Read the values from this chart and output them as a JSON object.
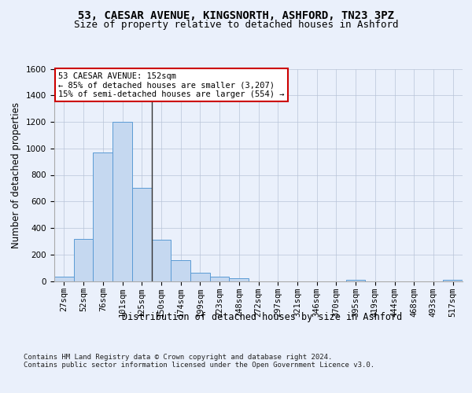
{
  "title": "53, CAESAR AVENUE, KINGSNORTH, ASHFORD, TN23 3PZ",
  "subtitle": "Size of property relative to detached houses in Ashford",
  "xlabel": "Distribution of detached houses by size in Ashford",
  "ylabel": "Number of detached properties",
  "categories": [
    "27sqm",
    "52sqm",
    "76sqm",
    "101sqm",
    "125sqm",
    "150sqm",
    "174sqm",
    "199sqm",
    "223sqm",
    "248sqm",
    "272sqm",
    "297sqm",
    "321sqm",
    "346sqm",
    "370sqm",
    "395sqm",
    "419sqm",
    "444sqm",
    "468sqm",
    "493sqm",
    "517sqm"
  ],
  "values": [
    30,
    320,
    970,
    1200,
    700,
    310,
    155,
    65,
    30,
    18,
    0,
    0,
    0,
    0,
    0,
    10,
    0,
    0,
    0,
    0,
    10
  ],
  "bar_color": "#c5d8f0",
  "bar_edge_color": "#5b9bd5",
  "vline_color": "#333333",
  "annotation_text": "53 CAESAR AVENUE: 152sqm\n← 85% of detached houses are smaller (3,207)\n15% of semi-detached houses are larger (554) →",
  "annotation_box_color": "#ffffff",
  "annotation_box_edge": "#cc0000",
  "ylim": [
    0,
    1600
  ],
  "yticks": [
    0,
    200,
    400,
    600,
    800,
    1000,
    1200,
    1400,
    1600
  ],
  "background_color": "#eaf0fb",
  "plot_bg_color": "#eaf0fb",
  "footer": "Contains HM Land Registry data © Crown copyright and database right 2024.\nContains public sector information licensed under the Open Government Licence v3.0.",
  "title_fontsize": 10,
  "subtitle_fontsize": 9,
  "axis_label_fontsize": 8.5,
  "tick_fontsize": 7.5,
  "footer_fontsize": 6.5,
  "annot_fontsize": 7.5
}
